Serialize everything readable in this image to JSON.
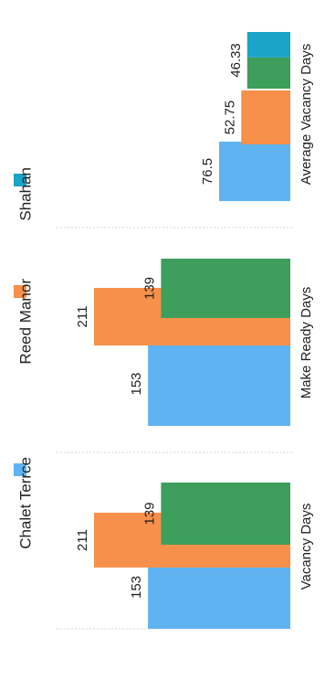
{
  "chart_data": {
    "type": "bar",
    "orientation": "rotated",
    "categories": [
      "Vacancy Days",
      "Make Ready Days",
      "Average Vacancy Days"
    ],
    "series": [
      {
        "name": "Chalet Terrce",
        "color": "#5fb3f0",
        "values": [
          153,
          153,
          76.5
        ],
        "labels": [
          "153",
          "153",
          "76.5"
        ]
      },
      {
        "name": "Reed Manor",
        "color": "#f7904a",
        "values": [
          211,
          211,
          52.75
        ],
        "labels": [
          "211",
          "211",
          "52.75"
        ]
      },
      {
        "name": "Shahan",
        "color": "#1aa5c8",
        "values": [
          null,
          null,
          46.33
        ],
        "labels": [
          "",
          "",
          "46.33"
        ]
      },
      {
        "name": "",
        "color": "#3e9e5c",
        "values": [
          139,
          139,
          null
        ],
        "labels": [
          "139",
          "139",
          ""
        ]
      }
    ],
    "legend_position": "top",
    "grid": false
  }
}
